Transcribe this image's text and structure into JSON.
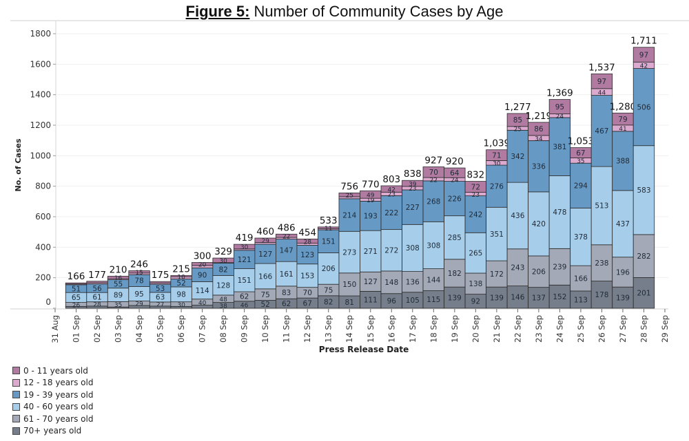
{
  "title_prefix": "Figure 5:",
  "title_text": " Number of Community Cases by Age",
  "chart_data": {
    "type": "bar",
    "stacked": true,
    "title": "Figure 5: Number of Community Cases by Age",
    "xlabel": "Press Release Date",
    "ylabel": "No. of Cases",
    "ylim": [
      0,
      1800
    ],
    "yticks": [
      0,
      200,
      400,
      600,
      800,
      1000,
      1200,
      1400,
      1600,
      1800
    ],
    "xtick_labels": [
      "31 Aug",
      "01 Sep",
      "02 Sep",
      "03 Sep",
      "04 Sep",
      "05 Sep",
      "06 Sep",
      "07 Sep",
      "08 Sep",
      "09 Sep",
      "10 Sep",
      "11 Sep",
      "12 Sep",
      "13 Sep",
      "14 Sep",
      "15 Sep",
      "16 Sep",
      "17 Sep",
      "18 Sep",
      "19 Sep",
      "20 Sep",
      "21 Sep",
      "22 Sep",
      "23 Sep",
      "24 Sep",
      "25 Sep",
      "26 Sep",
      "27 Sep",
      "28 Sep",
      "29 Sep"
    ],
    "categories": [
      "01 Sep",
      "02 Sep",
      "03 Sep",
      "04 Sep",
      "05 Sep",
      "06 Sep",
      "07 Sep",
      "08 Sep",
      "09 Sep",
      "10 Sep",
      "11 Sep",
      "12 Sep",
      "13 Sep",
      "14 Sep",
      "15 Sep",
      "16 Sep",
      "17 Sep",
      "18 Sep",
      "19 Sep",
      "20 Sep",
      "21 Sep",
      "22 Sep",
      "23 Sep",
      "24 Sep",
      "25 Sep",
      "26 Sep",
      "27 Sep",
      "28 Sep"
    ],
    "totals": [
      166,
      177,
      210,
      246,
      175,
      215,
      300,
      329,
      419,
      460,
      486,
      454,
      533,
      756,
      770,
      803,
      838,
      927,
      920,
      832,
      1039,
      1277,
      1219,
      1369,
      1053,
      1537,
      1280,
      1711
    ],
    "total_labels": [
      "166",
      "177",
      "210",
      "246",
      "175",
      "215",
      "300",
      "329",
      "419",
      "460",
      "486",
      "454",
      "533",
      "756",
      "770",
      "803",
      "838",
      "927",
      "920",
      "832",
      "1,039",
      "1,277",
      "1,219",
      "1,369",
      "1,053",
      "1,537",
      "1,280",
      "1,711"
    ],
    "series": [
      {
        "name": "70+ years old",
        "color": "#767e8b",
        "values": [
          12,
          14,
          8,
          18,
          14,
          12,
          20,
          38,
          46,
          52,
          62,
          67,
          82,
          81,
          111,
          96,
          105,
          115,
          139,
          92,
          139,
          146,
          137,
          152,
          113,
          178,
          139,
          201
        ],
        "labeled": [
          false,
          false,
          false,
          false,
          false,
          false,
          false,
          true,
          true,
          true,
          true,
          true,
          true,
          true,
          true,
          true,
          true,
          true,
          true,
          true,
          true,
          true,
          true,
          true,
          true,
          true,
          true,
          true
        ]
      },
      {
        "name": "61 - 70 years old",
        "color": "#a3a9b6",
        "values": [
          26,
          28,
          35,
          29,
          27,
          30,
          40,
          48,
          62,
          75,
          83,
          70,
          75,
          150,
          127,
          148,
          136,
          144,
          182,
          138,
          172,
          243,
          206,
          239,
          166,
          238,
          196,
          282
        ],
        "labeled": [
          true,
          true,
          true,
          true,
          true,
          true,
          true,
          true,
          true,
          true,
          true,
          true,
          true,
          true,
          true,
          true,
          true,
          true,
          true,
          true,
          true,
          true,
          true,
          true,
          true,
          true,
          true,
          true
        ]
      },
      {
        "name": "40 - 60 years old",
        "color": "#a6cde9",
        "values": [
          65,
          61,
          89,
          95,
          63,
          98,
          114,
          128,
          151,
          166,
          161,
          153,
          206,
          273,
          271,
          272,
          308,
          308,
          285,
          265,
          351,
          436,
          420,
          478,
          378,
          513,
          437,
          583
        ],
        "labeled": [
          true,
          true,
          true,
          true,
          true,
          true,
          true,
          true,
          true,
          true,
          true,
          true,
          true,
          true,
          true,
          true,
          true,
          true,
          true,
          true,
          true,
          true,
          true,
          true,
          true,
          true,
          true,
          true
        ]
      },
      {
        "name": "19 - 39 years old",
        "color": "#6699c4",
        "values": [
          51,
          56,
          55,
          78,
          53,
          52,
          90,
          82,
          121,
          127,
          147,
          123,
          151,
          214,
          193,
          222,
          227,
          268,
          226,
          242,
          276,
          342,
          336,
          381,
          294,
          467,
          388,
          506
        ],
        "labeled": [
          true,
          true,
          true,
          true,
          true,
          true,
          true,
          true,
          true,
          true,
          true,
          true,
          true,
          true,
          true,
          true,
          true,
          true,
          true,
          true,
          true,
          true,
          true,
          true,
          true,
          true,
          true,
          true
        ]
      },
      {
        "name": "12 - 18 years old",
        "color": "#dca9cf",
        "values": [
          5,
          8,
          7,
          11,
          8,
          13,
          16,
          3,
          9,
          11,
          11,
          13,
          8,
          13,
          19,
          23,
          23,
          22,
          24,
          23,
          30,
          25,
          34,
          24,
          35,
          44,
          41,
          42
        ],
        "labeled": [
          false,
          false,
          false,
          false,
          false,
          false,
          false,
          false,
          false,
          false,
          false,
          false,
          false,
          false,
          true,
          true,
          true,
          true,
          true,
          true,
          true,
          true,
          true,
          true,
          true,
          true,
          true,
          true
        ]
      },
      {
        "name": "0 - 11 years old",
        "color": "#b07aa1",
        "values": [
          7,
          10,
          16,
          15,
          10,
          10,
          20,
          30,
          30,
          29,
          22,
          28,
          11,
          25,
          49,
          42,
          39,
          70,
          64,
          72,
          71,
          85,
          86,
          95,
          67,
          97,
          79,
          97
        ],
        "labeled": [
          false,
          false,
          true,
          true,
          false,
          true,
          true,
          true,
          true,
          true,
          true,
          true,
          true,
          true,
          true,
          true,
          true,
          true,
          true,
          true,
          true,
          true,
          true,
          true,
          true,
          true,
          true,
          true
        ]
      }
    ],
    "legend": {
      "position": "bottom-left",
      "entries": [
        "0 - 11 years old",
        "12 - 18 years old",
        "19 - 39 years old",
        "40 - 60 years old",
        "61 - 70 years old",
        "70+ years old"
      ],
      "colors": [
        "#b07aa1",
        "#dca9cf",
        "#6699c4",
        "#a6cde9",
        "#a3a9b6",
        "#767e8b"
      ]
    },
    "grid": true
  }
}
